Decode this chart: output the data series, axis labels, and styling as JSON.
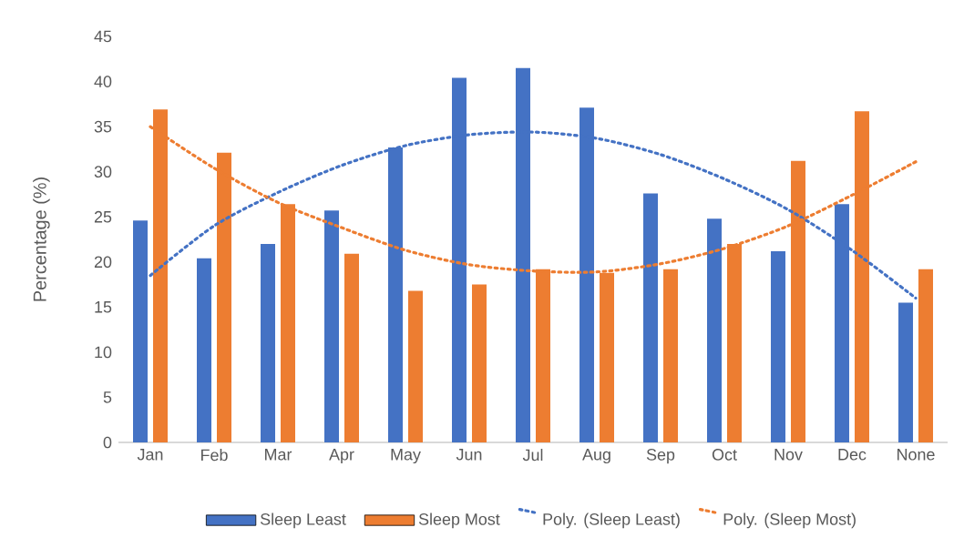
{
  "chart_data": {
    "type": "bar",
    "ylabel": "Percentage (%)",
    "categories": [
      "Jan",
      "Feb",
      "Mar",
      "Apr",
      "May",
      "Jun",
      "Jul",
      "Aug",
      "Sep",
      "Oct",
      "Nov",
      "Dec",
      "None"
    ],
    "series": [
      {
        "name": "Sleep Least",
        "color": "#4472c4",
        "values": [
          24.6,
          20.4,
          22.0,
          25.7,
          32.7,
          40.4,
          41.5,
          37.1,
          27.6,
          24.8,
          21.2,
          26.4,
          15.5
        ]
      },
      {
        "name": "Sleep Most",
        "color": "#ed7d31",
        "values": [
          36.9,
          32.1,
          26.4,
          20.9,
          16.8,
          17.5,
          19.2,
          18.8,
          19.2,
          22.0,
          31.2,
          36.7,
          19.2
        ]
      },
      {
        "name": "Poly. (Sleep Least)",
        "type": "line",
        "line_style": "dotted",
        "marker": "none",
        "color": "#4472c4",
        "values": [
          18.5,
          24.0,
          27.7,
          30.7,
          32.9,
          34.1,
          34.4,
          33.7,
          31.9,
          29.2,
          25.8,
          21.3,
          16.0
        ]
      },
      {
        "name": "Poly. (Sleep Most)",
        "type": "line",
        "line_style": "dotted",
        "marker": "none",
        "color": "#ed7d31",
        "values": [
          35.0,
          30.4,
          26.6,
          23.8,
          21.3,
          19.7,
          19.0,
          18.9,
          19.8,
          21.5,
          24.0,
          27.4,
          31.1
        ]
      }
    ],
    "ylim": [
      0,
      45
    ],
    "yticks": [
      0,
      5,
      10,
      15,
      20,
      25,
      30,
      35,
      40,
      45
    ],
    "grid": false,
    "legend": "bottom"
  }
}
